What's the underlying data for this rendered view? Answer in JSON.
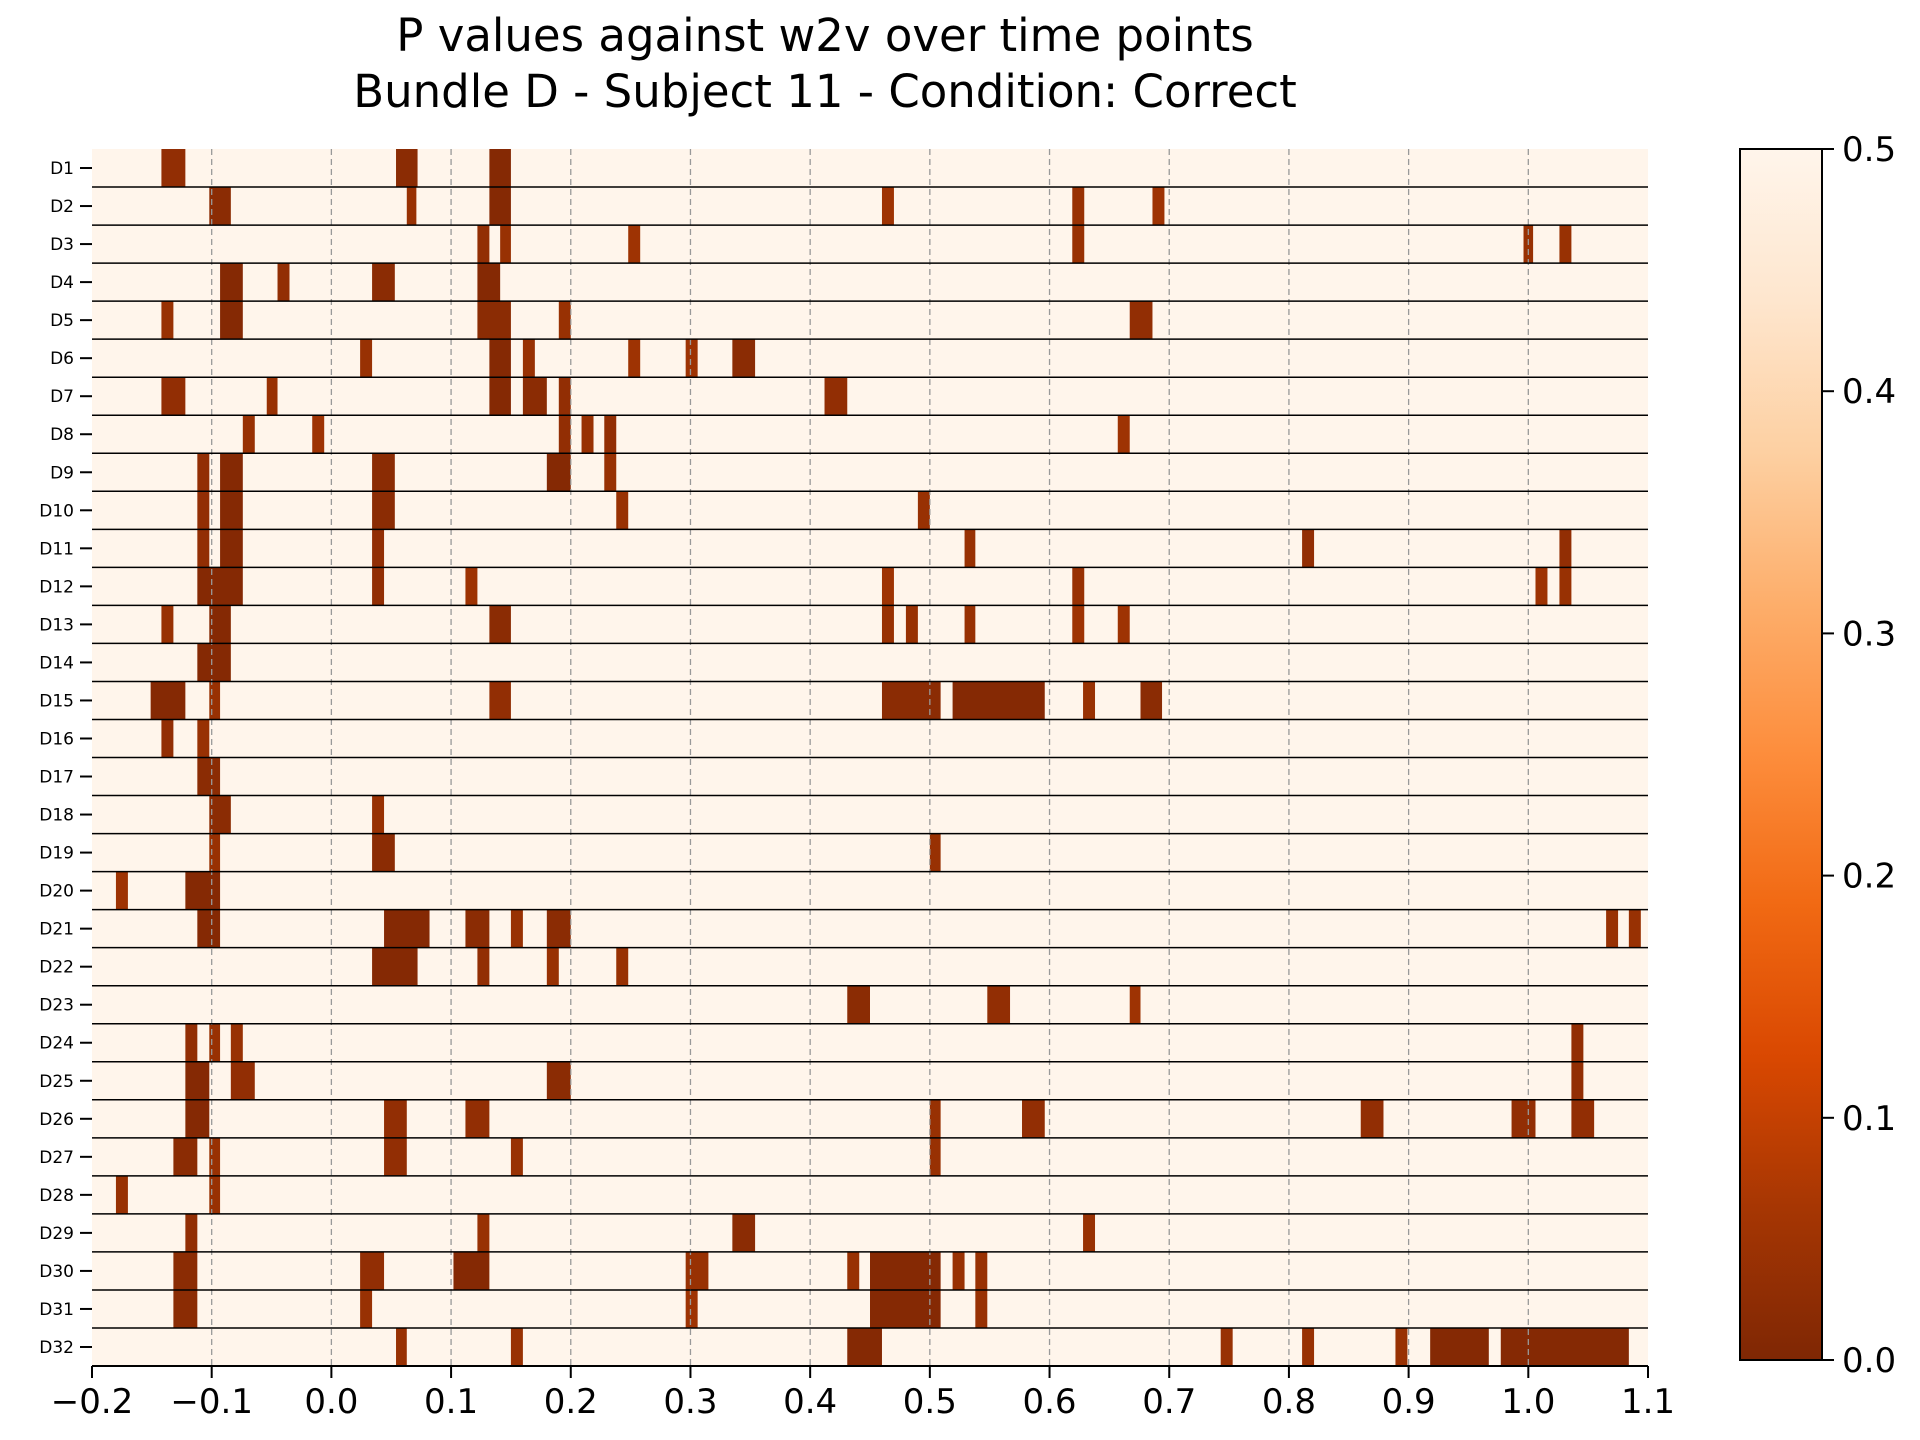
{
  "chart_data": {
    "type": "heatmap",
    "title": "P values against w2v over time points",
    "subtitle": "Bundle D - Subject 11 - Condition: Correct",
    "xlabel": "",
    "ylabel": "",
    "xlim": [
      -0.2,
      1.1
    ],
    "x_ticks": [
      "−0.2",
      "−0.1",
      "0.0",
      "0.1",
      "0.2",
      "0.3",
      "0.4",
      "0.5",
      "0.6",
      "0.7",
      "0.8",
      "0.9",
      "1.0",
      "1.1"
    ],
    "vertical_grid": true,
    "colormap": "Oranges_r",
    "colors": {
      "low": "#7f2704",
      "high": "#fff5eb"
    },
    "colorbar": {
      "range": [
        0,
        0.5
      ],
      "ticks": [
        "0.0",
        "0.1",
        "0.2",
        "0.3",
        "0.4",
        "0.5"
      ]
    },
    "background_value": 0.5,
    "rows": [
      {
        "label": "D1",
        "segments": [
          [
            -0.142,
            -0.122,
            0.03
          ],
          [
            0.054,
            0.072,
            0.02
          ],
          [
            0.132,
            0.15,
            0.01
          ]
        ]
      },
      {
        "label": "D2",
        "segments": [
          [
            -0.102,
            -0.084,
            0.02
          ],
          [
            0.063,
            0.071,
            0.04
          ],
          [
            0.132,
            0.15,
            0.01
          ],
          [
            0.46,
            0.47,
            0.05
          ],
          [
            0.619,
            0.629,
            0.04
          ],
          [
            0.686,
            0.696,
            0.05
          ]
        ]
      },
      {
        "label": "D3",
        "segments": [
          [
            0.122,
            0.132,
            0.03
          ],
          [
            0.141,
            0.15,
            0.04
          ],
          [
            0.248,
            0.258,
            0.05
          ],
          [
            0.619,
            0.629,
            0.04
          ],
          [
            0.996,
            1.004,
            0.04
          ],
          [
            1.026,
            1.036,
            0.04
          ]
        ]
      },
      {
        "label": "D4",
        "segments": [
          [
            -0.093,
            -0.074,
            0.01
          ],
          [
            -0.045,
            -0.035,
            0.03
          ],
          [
            0.034,
            0.053,
            0.02
          ],
          [
            0.122,
            0.141,
            0.01
          ]
        ]
      },
      {
        "label": "D5",
        "segments": [
          [
            -0.142,
            -0.132,
            0.04
          ],
          [
            -0.093,
            -0.074,
            0.01
          ],
          [
            0.122,
            0.15,
            0.02
          ],
          [
            0.19,
            0.2,
            0.04
          ],
          [
            0.667,
            0.686,
            0.03
          ]
        ]
      },
      {
        "label": "D6",
        "segments": [
          [
            0.024,
            0.034,
            0.04
          ],
          [
            0.132,
            0.15,
            0.01
          ],
          [
            0.16,
            0.17,
            0.04
          ],
          [
            0.248,
            0.258,
            0.05
          ],
          [
            0.296,
            0.306,
            0.05
          ],
          [
            0.335,
            0.354,
            0.02
          ]
        ]
      },
      {
        "label": "D7",
        "segments": [
          [
            -0.142,
            -0.122,
            0.03
          ],
          [
            -0.054,
            -0.045,
            0.04
          ],
          [
            0.132,
            0.15,
            0.01
          ],
          [
            0.16,
            0.18,
            0.02
          ],
          [
            0.19,
            0.2,
            0.03
          ],
          [
            0.412,
            0.431,
            0.03
          ]
        ]
      },
      {
        "label": "D8",
        "segments": [
          [
            -0.074,
            -0.064,
            0.04
          ],
          [
            -0.016,
            -0.006,
            0.05
          ],
          [
            0.19,
            0.2,
            0.03
          ],
          [
            0.209,
            0.219,
            0.04
          ],
          [
            0.228,
            0.238,
            0.03
          ],
          [
            0.657,
            0.667,
            0.05
          ]
        ]
      },
      {
        "label": "D9",
        "segments": [
          [
            -0.112,
            -0.102,
            0.03
          ],
          [
            -0.093,
            -0.074,
            0.01
          ],
          [
            0.034,
            0.053,
            0.02
          ],
          [
            0.18,
            0.2,
            0.01
          ],
          [
            0.228,
            0.238,
            0.04
          ]
        ]
      },
      {
        "label": "D10",
        "segments": [
          [
            -0.112,
            -0.102,
            0.03
          ],
          [
            -0.093,
            -0.074,
            0.01
          ],
          [
            0.034,
            0.053,
            0.02
          ],
          [
            0.238,
            0.248,
            0.04
          ],
          [
            0.49,
            0.5,
            0.04
          ]
        ]
      },
      {
        "label": "D11",
        "segments": [
          [
            -0.112,
            -0.102,
            0.03
          ],
          [
            -0.093,
            -0.074,
            0.01
          ],
          [
            0.034,
            0.044,
            0.03
          ],
          [
            0.529,
            0.538,
            0.04
          ],
          [
            0.811,
            0.821,
            0.03
          ],
          [
            1.026,
            1.036,
            0.03
          ]
        ]
      },
      {
        "label": "D12",
        "segments": [
          [
            -0.112,
            -0.074,
            0.01
          ],
          [
            0.034,
            0.044,
            0.03
          ],
          [
            0.112,
            0.122,
            0.05
          ],
          [
            0.46,
            0.47,
            0.05
          ],
          [
            0.619,
            0.629,
            0.04
          ],
          [
            1.006,
            1.016,
            0.05
          ],
          [
            1.026,
            1.036,
            0.04
          ]
        ]
      },
      {
        "label": "D13",
        "segments": [
          [
            -0.142,
            -0.132,
            0.04
          ],
          [
            -0.102,
            -0.084,
            0.01
          ],
          [
            0.132,
            0.15,
            0.02
          ],
          [
            0.46,
            0.47,
            0.04
          ],
          [
            0.48,
            0.49,
            0.04
          ],
          [
            0.529,
            0.538,
            0.04
          ],
          [
            0.619,
            0.629,
            0.05
          ],
          [
            0.657,
            0.667,
            0.05
          ]
        ]
      },
      {
        "label": "D14",
        "segments": [
          [
            -0.112,
            -0.084,
            0.01
          ]
        ]
      },
      {
        "label": "D15",
        "segments": [
          [
            -0.151,
            -0.122,
            0.01
          ],
          [
            -0.102,
            -0.093,
            0.04
          ],
          [
            0.132,
            0.15,
            0.03
          ],
          [
            0.46,
            0.509,
            0.02
          ],
          [
            0.519,
            0.596,
            0.01
          ],
          [
            0.628,
            0.638,
            0.04
          ],
          [
            0.676,
            0.694,
            0.02
          ]
        ]
      },
      {
        "label": "D16",
        "segments": [
          [
            -0.142,
            -0.132,
            0.03
          ],
          [
            -0.112,
            -0.102,
            0.04
          ]
        ]
      },
      {
        "label": "D17",
        "segments": [
          [
            -0.112,
            -0.093,
            0.02
          ]
        ]
      },
      {
        "label": "D18",
        "segments": [
          [
            -0.102,
            -0.084,
            0.02
          ],
          [
            0.034,
            0.044,
            0.04
          ]
        ]
      },
      {
        "label": "D19",
        "segments": [
          [
            -0.102,
            -0.093,
            0.04
          ],
          [
            0.034,
            0.053,
            0.02
          ],
          [
            0.5,
            0.509,
            0.04
          ]
        ]
      },
      {
        "label": "D20",
        "segments": [
          [
            -0.18,
            -0.17,
            0.05
          ],
          [
            -0.122,
            -0.093,
            0.01
          ]
        ]
      },
      {
        "label": "D21",
        "segments": [
          [
            -0.112,
            -0.093,
            0.01
          ],
          [
            0.044,
            0.082,
            0.01
          ],
          [
            0.112,
            0.132,
            0.02
          ],
          [
            0.15,
            0.16,
            0.04
          ],
          [
            0.18,
            0.2,
            0.02
          ],
          [
            1.065,
            1.075,
            0.04
          ],
          [
            1.084,
            1.094,
            0.04
          ]
        ]
      },
      {
        "label": "D22",
        "segments": [
          [
            0.034,
            0.072,
            0.01
          ],
          [
            0.122,
            0.132,
            0.03
          ],
          [
            0.18,
            0.19,
            0.04
          ],
          [
            0.238,
            0.248,
            0.04
          ]
        ]
      },
      {
        "label": "D23",
        "segments": [
          [
            0.431,
            0.45,
            0.02
          ],
          [
            0.548,
            0.567,
            0.03
          ],
          [
            0.667,
            0.676,
            0.05
          ]
        ]
      },
      {
        "label": "D24",
        "segments": [
          [
            -0.122,
            -0.112,
            0.03
          ],
          [
            -0.102,
            -0.093,
            0.04
          ],
          [
            -0.084,
            -0.074,
            0.04
          ],
          [
            1.036,
            1.046,
            0.03
          ]
        ]
      },
      {
        "label": "D25",
        "segments": [
          [
            -0.122,
            -0.102,
            0.01
          ],
          [
            -0.084,
            -0.064,
            0.03
          ],
          [
            0.18,
            0.2,
            0.02
          ],
          [
            1.036,
            1.046,
            0.03
          ]
        ]
      },
      {
        "label": "D26",
        "segments": [
          [
            -0.122,
            -0.102,
            0.01
          ],
          [
            0.044,
            0.063,
            0.03
          ],
          [
            0.112,
            0.132,
            0.03
          ],
          [
            0.5,
            0.509,
            0.04
          ],
          [
            0.577,
            0.596,
            0.03
          ],
          [
            0.86,
            0.879,
            0.03
          ],
          [
            0.986,
            1.006,
            0.03
          ],
          [
            1.036,
            1.055,
            0.03
          ]
        ]
      },
      {
        "label": "D27",
        "segments": [
          [
            -0.132,
            -0.112,
            0.02
          ],
          [
            -0.102,
            -0.093,
            0.04
          ],
          [
            0.044,
            0.063,
            0.03
          ],
          [
            0.15,
            0.16,
            0.04
          ],
          [
            0.5,
            0.509,
            0.04
          ]
        ]
      },
      {
        "label": "D28",
        "segments": [
          [
            -0.18,
            -0.17,
            0.04
          ],
          [
            -0.102,
            -0.093,
            0.04
          ]
        ]
      },
      {
        "label": "D29",
        "segments": [
          [
            -0.122,
            -0.112,
            0.03
          ],
          [
            0.122,
            0.132,
            0.04
          ],
          [
            0.335,
            0.354,
            0.02
          ],
          [
            0.628,
            0.638,
            0.04
          ]
        ]
      },
      {
        "label": "D30",
        "segments": [
          [
            -0.132,
            -0.112,
            0.02
          ],
          [
            0.024,
            0.044,
            0.03
          ],
          [
            0.102,
            0.132,
            0.01
          ],
          [
            0.296,
            0.315,
            0.04
          ],
          [
            0.431,
            0.441,
            0.04
          ],
          [
            0.45,
            0.509,
            0.01
          ],
          [
            0.519,
            0.529,
            0.04
          ],
          [
            0.538,
            0.548,
            0.04
          ]
        ]
      },
      {
        "label": "D31",
        "segments": [
          [
            -0.132,
            -0.112,
            0.02
          ],
          [
            0.024,
            0.034,
            0.04
          ],
          [
            0.296,
            0.306,
            0.05
          ],
          [
            0.45,
            0.509,
            0.01
          ],
          [
            0.538,
            0.548,
            0.04
          ]
        ]
      },
      {
        "label": "D32",
        "segments": [
          [
            0.054,
            0.063,
            0.04
          ],
          [
            0.15,
            0.16,
            0.04
          ],
          [
            0.431,
            0.46,
            0.01
          ],
          [
            0.743,
            0.753,
            0.04
          ],
          [
            0.811,
            0.821,
            0.04
          ],
          [
            0.889,
            0.899,
            0.04
          ],
          [
            0.918,
            0.967,
            0.01
          ],
          [
            0.977,
            1.084,
            0.01
          ]
        ]
      }
    ]
  }
}
